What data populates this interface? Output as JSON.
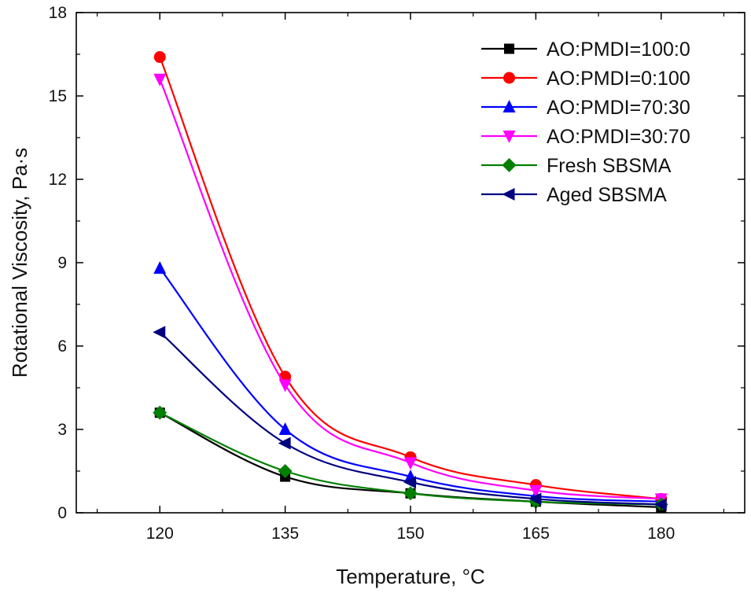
{
  "chart_data": {
    "type": "line",
    "title": "",
    "xlabel": "Temperature, °C",
    "ylabel": "Rotational Viscosity, Pa·s",
    "x": [
      120,
      135,
      150,
      165,
      180
    ],
    "x_ticks": [
      120,
      135,
      150,
      165,
      180
    ],
    "xlim": [
      110,
      190
    ],
    "ylim": [
      0,
      18
    ],
    "y_ticks": [
      0,
      3,
      6,
      9,
      12,
      15,
      18
    ],
    "legend_position": "top-right",
    "grid": false,
    "series": [
      {
        "name": "AO:PMDI=100:0",
        "color": "#000000",
        "marker": "square",
        "values": [
          3.6,
          1.3,
          0.7,
          0.4,
          0.2
        ]
      },
      {
        "name": "AO:PMDI=0:100",
        "color": "#ff0000",
        "marker": "circle",
        "values": [
          16.4,
          4.9,
          2.0,
          1.0,
          0.5
        ]
      },
      {
        "name": "AO:PMDI=70:30",
        "color": "#0000ff",
        "marker": "triangle-up",
        "values": [
          8.8,
          3.0,
          1.3,
          0.6,
          0.4
        ]
      },
      {
        "name": "AO:PMDI=30:70",
        "color": "#ff00ff",
        "marker": "triangle-down",
        "values": [
          15.6,
          4.6,
          1.8,
          0.8,
          0.5
        ]
      },
      {
        "name": "Fresh SBSMA",
        "color": "#008000",
        "marker": "diamond",
        "values": [
          3.6,
          1.5,
          0.7,
          0.4,
          0.3
        ]
      },
      {
        "name": "Aged SBSMA",
        "color": "#000080",
        "marker": "triangle-left",
        "values": [
          6.5,
          2.5,
          1.1,
          0.5,
          0.3
        ]
      }
    ]
  }
}
